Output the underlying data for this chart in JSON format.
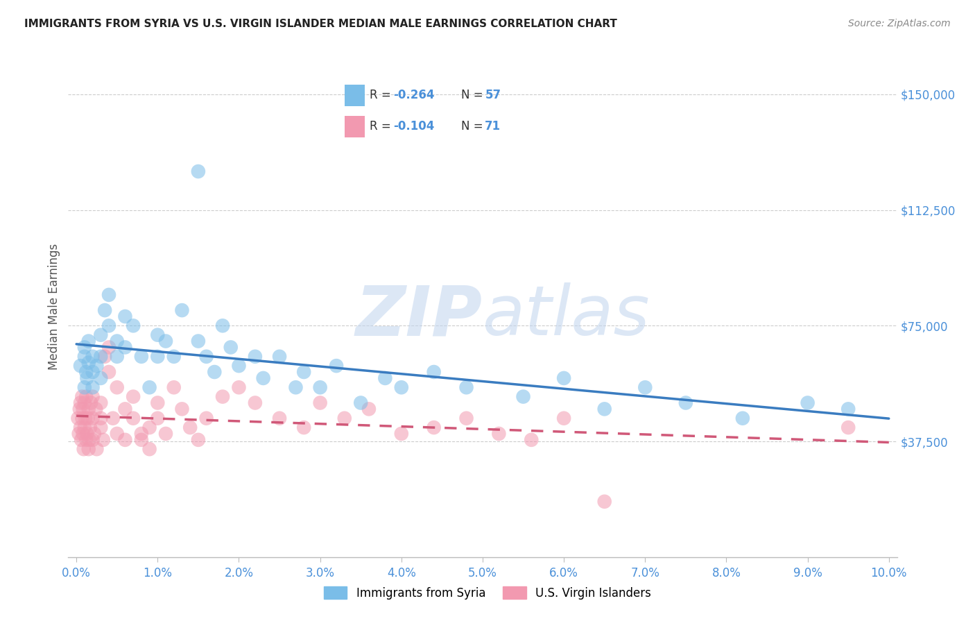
{
  "title": "IMMIGRANTS FROM SYRIA VS U.S. VIRGIN ISLANDER MEDIAN MALE EARNINGS CORRELATION CHART",
  "source": "Source: ZipAtlas.com",
  "ylabel": "Median Male Earnings",
  "xlim": [
    -0.001,
    0.101
  ],
  "ylim": [
    0,
    162500
  ],
  "ytick_vals": [
    37500,
    75000,
    112500,
    150000
  ],
  "ytick_labels": [
    "$37,500",
    "$75,000",
    "$112,500",
    "$150,000"
  ],
  "xtick_vals": [
    0.0,
    0.01,
    0.02,
    0.03,
    0.04,
    0.05,
    0.06,
    0.07,
    0.08,
    0.09,
    0.1
  ],
  "xtick_labels": [
    "0.0%",
    "1.0%",
    "2.0%",
    "3.0%",
    "4.0%",
    "5.0%",
    "6.0%",
    "7.0%",
    "8.0%",
    "9.0%",
    "10.0%"
  ],
  "legend1_R": "-0.264",
  "legend1_N": "57",
  "legend2_R": "-0.104",
  "legend2_N": "71",
  "blue_color": "#7ABDE8",
  "pink_color": "#F299B0",
  "blue_line_color": "#3A7CC0",
  "pink_line_color": "#D05878",
  "axis_blue": "#4A90D9",
  "watermark_color": "#C8D8F0",
  "background": "#FFFFFF",
  "grid_color": "#CCCCCC",
  "title_color": "#222222",
  "source_color": "#888888",
  "label_color": "#555555",
  "legend_val_color": "#4A90D9",
  "legend_text_color": "#333333",
  "syria_x": [
    0.0005,
    0.001,
    0.001,
    0.001,
    0.0012,
    0.0013,
    0.0015,
    0.0015,
    0.002,
    0.002,
    0.002,
    0.0025,
    0.003,
    0.003,
    0.003,
    0.0035,
    0.004,
    0.004,
    0.005,
    0.005,
    0.006,
    0.006,
    0.007,
    0.008,
    0.009,
    0.01,
    0.01,
    0.011,
    0.012,
    0.013,
    0.015,
    0.015,
    0.016,
    0.017,
    0.018,
    0.019,
    0.02,
    0.022,
    0.023,
    0.025,
    0.027,
    0.028,
    0.03,
    0.032,
    0.035,
    0.038,
    0.04,
    0.044,
    0.048,
    0.055,
    0.06,
    0.065,
    0.07,
    0.075,
    0.082,
    0.09,
    0.095
  ],
  "syria_y": [
    62000,
    65000,
    55000,
    68000,
    60000,
    58000,
    70000,
    63000,
    65000,
    55000,
    60000,
    62000,
    65000,
    72000,
    58000,
    80000,
    75000,
    85000,
    70000,
    65000,
    78000,
    68000,
    75000,
    65000,
    55000,
    65000,
    72000,
    70000,
    65000,
    80000,
    125000,
    70000,
    65000,
    60000,
    75000,
    68000,
    62000,
    65000,
    58000,
    65000,
    55000,
    60000,
    55000,
    62000,
    50000,
    58000,
    55000,
    60000,
    55000,
    52000,
    58000,
    48000,
    55000,
    50000,
    45000,
    50000,
    48000
  ],
  "virgin_x": [
    0.0002,
    0.0003,
    0.0004,
    0.0005,
    0.0005,
    0.0006,
    0.0007,
    0.0007,
    0.0008,
    0.0008,
    0.0009,
    0.001,
    0.001,
    0.0011,
    0.0012,
    0.0012,
    0.0013,
    0.0014,
    0.0015,
    0.0015,
    0.0016,
    0.0017,
    0.0018,
    0.002,
    0.002,
    0.002,
    0.0022,
    0.0024,
    0.0025,
    0.003,
    0.003,
    0.003,
    0.0033,
    0.0035,
    0.004,
    0.004,
    0.0045,
    0.005,
    0.005,
    0.006,
    0.006,
    0.007,
    0.007,
    0.008,
    0.008,
    0.009,
    0.009,
    0.01,
    0.01,
    0.011,
    0.012,
    0.013,
    0.014,
    0.015,
    0.016,
    0.018,
    0.02,
    0.022,
    0.025,
    0.028,
    0.03,
    0.033,
    0.036,
    0.04,
    0.044,
    0.048,
    0.052,
    0.056,
    0.06,
    0.065,
    0.095
  ],
  "virgin_y": [
    45000,
    40000,
    48000,
    50000,
    42000,
    38000,
    45000,
    52000,
    40000,
    48000,
    35000,
    50000,
    42000,
    45000,
    38000,
    52000,
    40000,
    45000,
    48000,
    35000,
    38000,
    42000,
    50000,
    45000,
    38000,
    52000,
    40000,
    48000,
    35000,
    50000,
    42000,
    45000,
    38000,
    65000,
    68000,
    60000,
    45000,
    55000,
    40000,
    38000,
    48000,
    45000,
    52000,
    40000,
    38000,
    42000,
    35000,
    50000,
    45000,
    40000,
    55000,
    48000,
    42000,
    38000,
    45000,
    52000,
    55000,
    50000,
    45000,
    42000,
    50000,
    45000,
    48000,
    40000,
    42000,
    45000,
    40000,
    38000,
    45000,
    18000,
    42000
  ]
}
